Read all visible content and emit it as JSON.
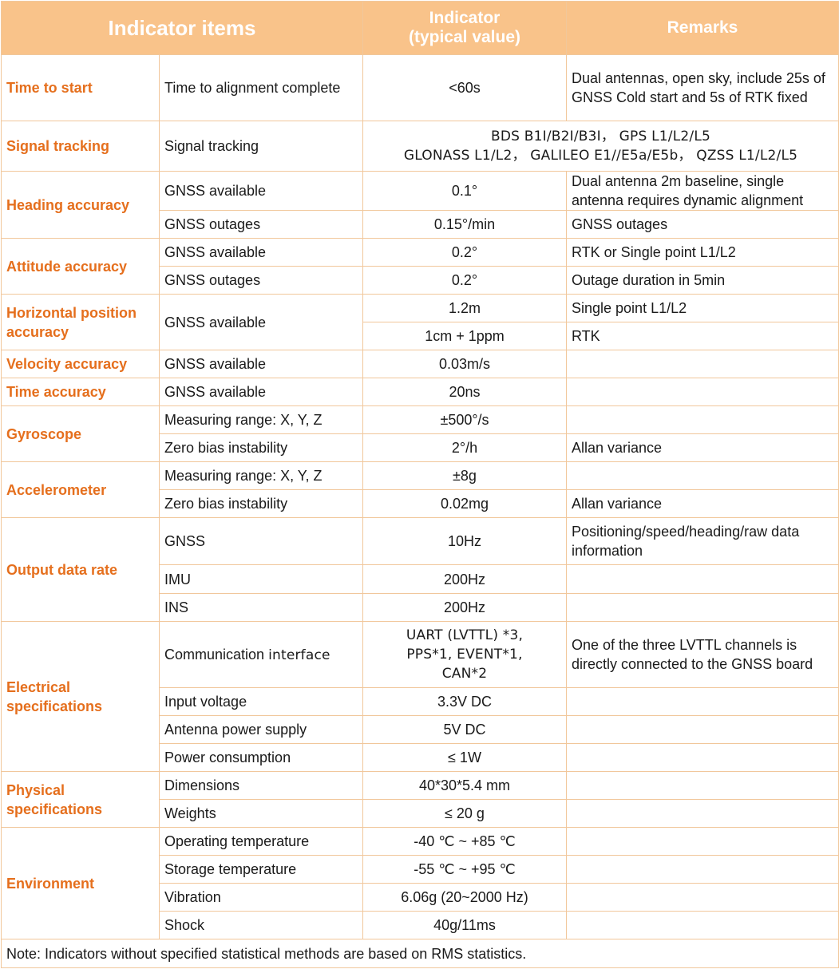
{
  "header": {
    "col1": "Indicator items",
    "col2_line1": "Indicator",
    "col2_line2": "(typical value)",
    "col3": "Remarks"
  },
  "rows": {
    "time_to_start": {
      "category": "Time to start",
      "condition": "Time to alignment complete",
      "value": "<60s",
      "remark": "Dual antennas, open sky, include 25s of GNSS Cold start and 5s of RTK fixed"
    },
    "signal_tracking": {
      "category": "Signal tracking",
      "condition": "Signal tracking",
      "value_line1": "BDS B1I/B2I/B3I， GPS L1/L2/L5",
      "value_line2": "GLONASS L1/L2， GALILEO E1//E5a/E5b， QZSS L1/L2/L5"
    },
    "heading_accuracy": {
      "category": "Heading accuracy",
      "cond1": "GNSS available",
      "val1": "0.1°",
      "rem1": "Dual antenna 2m baseline, single antenna requires dynamic alignment",
      "cond2": "GNSS outages",
      "val2": "0.15°/min",
      "rem2": "GNSS outages"
    },
    "attitude_accuracy": {
      "category": "Attitude accuracy",
      "cond1": "GNSS available",
      "val1": "0.2°",
      "rem1": "RTK or Single point L1/L2",
      "cond2": "GNSS outages",
      "val2": "0.2°",
      "rem2": "Outage duration in 5min"
    },
    "horizontal_position": {
      "category": "Horizontal position accuracy",
      "condition": "GNSS available",
      "val1": "1.2m",
      "rem1": "Single point L1/L2",
      "val2": "1cm + 1ppm",
      "rem2": "RTK"
    },
    "velocity_accuracy": {
      "category": "Velocity accuracy",
      "condition": "GNSS available",
      "value": "0.03m/s"
    },
    "time_accuracy": {
      "category": "Time accuracy",
      "condition": "GNSS available",
      "value": "20ns"
    },
    "gyroscope": {
      "category": "Gyroscope",
      "cond1": "Measuring range: X, Y, Z",
      "val1": "±500°/s",
      "cond2": "Zero bias instability",
      "val2": "2°/h",
      "rem2": "Allan variance"
    },
    "accelerometer": {
      "category": "Accelerometer",
      "cond1": "Measuring range: X, Y, Z",
      "val1": "±8g",
      "cond2": "Zero bias instability",
      "val2": "0.02mg",
      "rem2": "Allan variance"
    },
    "output_data_rate": {
      "category": "Output data rate",
      "cond1": "GNSS",
      "val1": "10Hz",
      "rem1": "Positioning/speed/heading/raw data information",
      "cond2": "IMU",
      "val2": "200Hz",
      "cond3": "INS",
      "val3": "200Hz"
    },
    "electrical": {
      "category": "Electrical specifications",
      "cond1_a": "Communication ",
      "cond1_b": "interface",
      "val1_line1": "UART (LVTTL) *3,",
      "val1_line2": "PPS*1, EVENT*1,",
      "val1_line3": "CAN*2",
      "rem1": "One of the three LVTTL channels is directly connected to the GNSS board",
      "cond2": "Input voltage",
      "val2": "3.3V DC",
      "cond3": "Antenna power supply",
      "val3": "5V DC",
      "cond4": "Power consumption",
      "val4": "≤ 1W"
    },
    "physical": {
      "category": "Physical specifications",
      "cond1": "Dimensions",
      "val1": "40*30*5.4 mm",
      "cond2": "Weights",
      "val2": "≤ 20 g"
    },
    "environment": {
      "category": "Environment",
      "cond1": "Operating temperature",
      "val1": "-40 ℃ ~ +85 ℃",
      "cond2": "Storage temperature",
      "val2": "-55 ℃ ~ +95 ℃",
      "cond3": "Vibration",
      "val3": "6.06g (20~2000 Hz)",
      "cond4": "Shock",
      "val4": "40g/11ms"
    }
  },
  "note": "Note: Indicators without specified statistical methods are based on RMS statistics.",
  "colors": {
    "header_bg": "#f9c38a",
    "header_text": "#ffffff",
    "category_text": "#e56f1d",
    "border": "#f1c79b"
  }
}
